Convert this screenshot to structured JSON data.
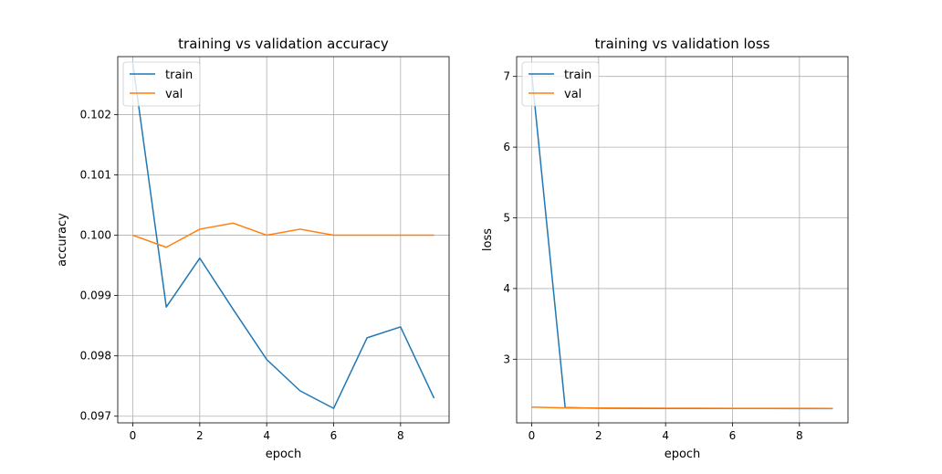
{
  "chart_data": [
    {
      "type": "line",
      "title": "training vs validation accuracy",
      "xlabel": "epoch",
      "ylabel": "accuracy",
      "xlim": [
        -0.45,
        9.45
      ],
      "ylim": [
        0.09689,
        0.10296
      ],
      "xticks": [
        0,
        2,
        4,
        6,
        8
      ],
      "xtick_labels": [
        "0",
        "2",
        "4",
        "6",
        "8"
      ],
      "yticks": [
        0.097,
        0.098,
        0.099,
        0.1,
        0.101,
        0.102
      ],
      "ytick_labels": [
        "0.097",
        "0.098",
        "0.099",
        "0.100",
        "0.101",
        "0.102"
      ],
      "grid": true,
      "legend": "upper left",
      "x": [
        0,
        1,
        2,
        3,
        4,
        5,
        6,
        7,
        8,
        9
      ],
      "series": [
        {
          "name": "train",
          "color": "#1f77b4",
          "values": [
            0.10285,
            0.09881,
            0.09962,
            0.09877,
            0.09794,
            0.09742,
            0.09713,
            0.0983,
            0.09848,
            0.0973
          ]
        },
        {
          "name": "val",
          "color": "#ff7f0e",
          "values": [
            0.1,
            0.0998,
            0.1001,
            0.1002,
            0.1,
            0.1001,
            0.1,
            0.1,
            0.1,
            0.1
          ]
        }
      ]
    },
    {
      "type": "line",
      "title": "training vs validation loss",
      "xlabel": "epoch",
      "ylabel": "loss",
      "xlim": [
        -0.45,
        9.45
      ],
      "ylim": [
        2.1,
        7.28
      ],
      "xticks": [
        0,
        2,
        4,
        6,
        8
      ],
      "xtick_labels": [
        "0",
        "2",
        "4",
        "6",
        "8"
      ],
      "yticks": [
        3,
        4,
        5,
        6,
        7
      ],
      "ytick_labels": [
        "3",
        "4",
        "5",
        "6",
        "7"
      ],
      "grid": true,
      "legend": "upper left",
      "x": [
        0,
        1,
        2,
        3,
        4,
        5,
        6,
        7,
        8,
        9
      ],
      "series": [
        {
          "name": "train",
          "color": "#1f77b4",
          "values": [
            7.04,
            2.316,
            2.306,
            2.305,
            2.304,
            2.303,
            2.303,
            2.303,
            2.302,
            2.302
          ]
        },
        {
          "name": "val",
          "color": "#ff7f0e",
          "values": [
            2.322,
            2.312,
            2.31,
            2.308,
            2.307,
            2.306,
            2.305,
            2.305,
            2.305,
            2.304
          ]
        }
      ]
    }
  ]
}
